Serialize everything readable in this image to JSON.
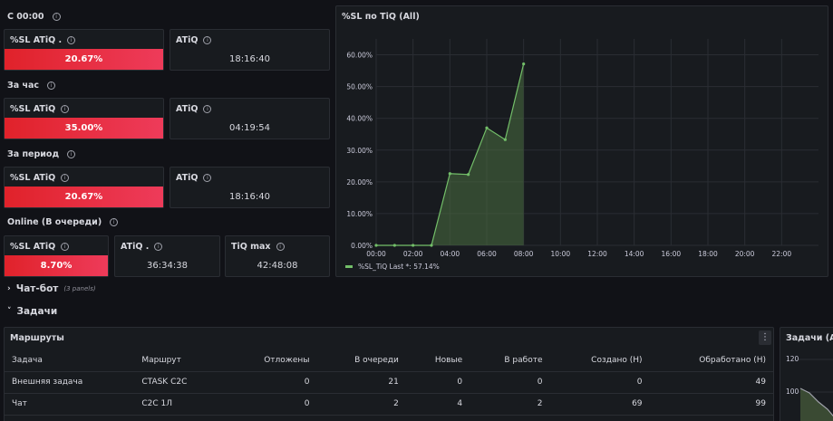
{
  "rows": {
    "since_midnight": "С 00:00",
    "per_hour": "За час",
    "per_period": "За период",
    "online": "Online (В очереди)"
  },
  "stats": {
    "r1": {
      "sl_label": "%SL ATiQ .",
      "sl_value": "20.67%",
      "atiq_label": "ATiQ",
      "atiq_value": "18:16:40"
    },
    "r2": {
      "sl_label": "%SL ATiQ",
      "sl_value": "35.00%",
      "atiq_label": "ATiQ",
      "atiq_value": "04:19:54"
    },
    "r3": {
      "sl_label": "%SL ATiQ",
      "sl_value": "20.67%",
      "atiq_label": "ATiQ",
      "atiq_value": "18:16:40"
    },
    "r4": {
      "sl_label": "%SL ATiQ",
      "sl_value": "8.70%",
      "atiq_label": "ATiQ .",
      "atiq_value": "36:34:38",
      "max_label": "TiQ max",
      "max_value": "42:48:08"
    }
  },
  "chart_panel": {
    "title": "%SL по TiQ (All)"
  },
  "chart_data": {
    "type": "area",
    "series": [
      {
        "name": "%SL_TiQ",
        "x": [
          "00:00",
          "01:00",
          "02:00",
          "03:00",
          "04:00",
          "05:00",
          "06:00",
          "07:00",
          "08:00"
        ],
        "values": [
          0,
          0,
          0,
          0,
          22.6,
          22.3,
          37.0,
          33.3,
          57.14
        ]
      }
    ],
    "x_ticks": [
      "00:00",
      "02:00",
      "04:00",
      "06:00",
      "08:00",
      "10:00",
      "12:00",
      "14:00",
      "16:00",
      "18:00",
      "20:00",
      "22:00"
    ],
    "y_ticks": [
      "0.00%",
      "10.00%",
      "20.00%",
      "30.00%",
      "40.00%",
      "50.00%",
      "60.00%"
    ],
    "ylim": [
      0,
      65
    ],
    "legend_text": "%SL_TiQ  Last *: 57.14%",
    "colors": {
      "line": "#73bf69",
      "fill": "#4a6e3f"
    }
  },
  "sections": {
    "chatbot": "Чат-бот",
    "chatbot_sub": "(3 panels)",
    "tasks": "Задачи"
  },
  "routes": {
    "title": "Маршруты",
    "menu_icon": "more-vertical-icon",
    "headers": [
      "Задача",
      "Маршрут",
      "Отложены",
      "В очереди",
      "Новые",
      "В работе",
      "Создано (Н)",
      "Обработано (Н)"
    ],
    "rows": [
      [
        "Внешняя задача",
        "CTASK C2C",
        "0",
        "21",
        "0",
        "0",
        "0",
        "49"
      ],
      [
        "Чат",
        "C2C 1Л",
        "0",
        "2",
        "4",
        "2",
        "69",
        "99"
      ]
    ]
  },
  "tasks_chart": {
    "title": "Задачи (All)",
    "y_ticks": [
      "120",
      "100"
    ]
  }
}
